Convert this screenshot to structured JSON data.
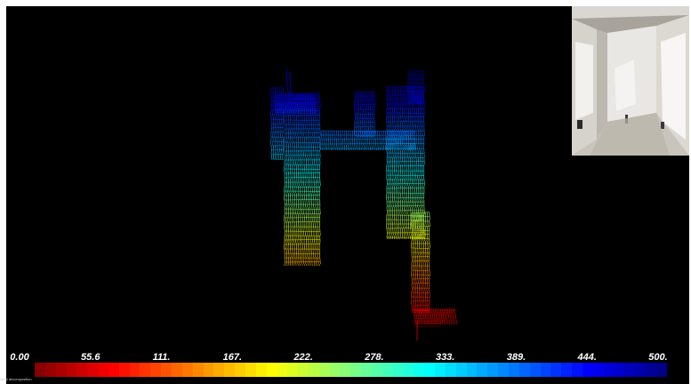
{
  "viewer": {
    "background": "#000000",
    "frame_color": "#ffffff"
  },
  "colorbar": {
    "min": 0,
    "max": 500,
    "tick_labels": [
      "0.00",
      "55.6",
      "111.",
      "167.",
      "222.",
      "278.",
      "333.",
      "389.",
      "444.",
      "500."
    ],
    "colormap": "jet-reversed",
    "steps": 60
  },
  "point_cloud": {
    "colormap": "jet-reversed",
    "value_range": [
      0,
      500
    ]
  },
  "inset": {
    "icon": "camera-image"
  },
  "footer": {
    "text": "Ideal decomposition"
  }
}
